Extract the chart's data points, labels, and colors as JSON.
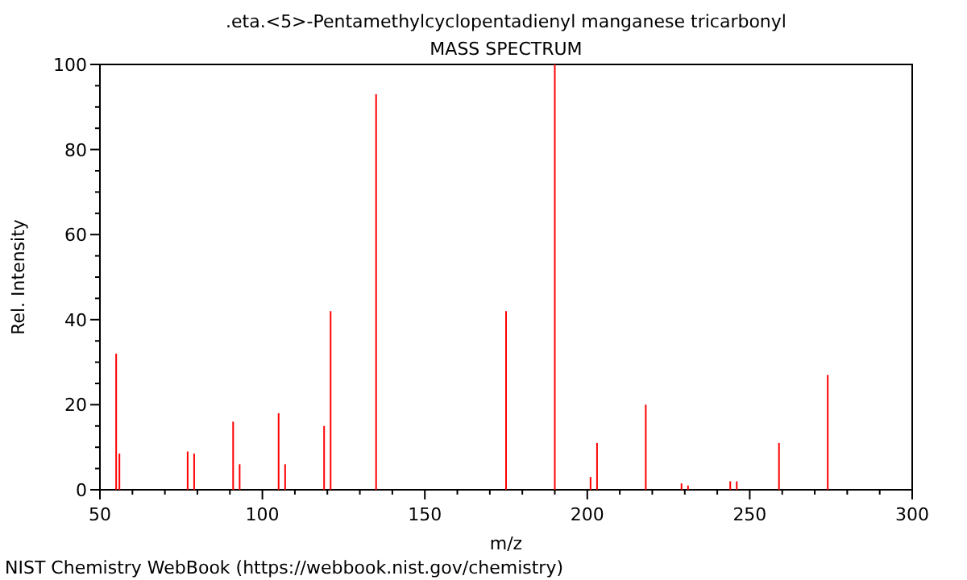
{
  "chart_data": {
    "type": "bar",
    "title": ".eta.<5>-Pentamethylcyclopentadienyl manganese tricarbonyl",
    "subtitle": "MASS SPECTRUM",
    "xlabel": "m/z",
    "ylabel": "Rel. Intensity",
    "x": [
      55,
      56,
      77,
      79,
      91,
      93,
      105,
      107,
      119,
      121,
      135,
      175,
      190,
      201,
      203,
      218,
      229,
      231,
      244,
      246,
      259,
      274
    ],
    "series": [
      {
        "color": "#ff0000",
        "values": [
          32,
          8.5,
          9,
          8.5,
          16,
          6,
          18,
          6,
          15,
          42,
          93,
          42,
          100,
          3,
          11,
          20,
          1.5,
          1,
          2,
          2,
          11,
          27
        ]
      }
    ],
    "xlim": [
      50,
      300
    ],
    "xticks": [
      50,
      {
        "value": 60,
        "label": null
      },
      {
        "value": 70,
        "label": null
      },
      {
        "value": 80,
        "label": null
      },
      {
        "value": 90,
        "label": null
      },
      100,
      {
        "value": 110,
        "label": null
      },
      {
        "value": 120,
        "label": null
      },
      {
        "value": 130,
        "label": null
      },
      {
        "value": 140,
        "label": null
      },
      150,
      {
        "value": 160,
        "label": null
      },
      {
        "value": 170,
        "label": null
      },
      {
        "value": 180,
        "label": null
      },
      {
        "value": 190,
        "label": null
      },
      200,
      {
        "value": 210,
        "label": null
      },
      {
        "value": 220,
        "label": null
      },
      {
        "value": 230,
        "label": null
      },
      {
        "value": 240,
        "label": null
      },
      250,
      {
        "value": 260,
        "label": null
      },
      {
        "value": 270,
        "label": null
      },
      {
        "value": 280,
        "label": null
      },
      {
        "value": 290,
        "label": null
      },
      300
    ],
    "ylim": [
      0,
      100
    ],
    "yticks": [
      0,
      {
        "value": 5,
        "label": null
      },
      {
        "value": 10,
        "label": null
      },
      {
        "value": 15,
        "label": null
      },
      20,
      {
        "value": 25,
        "label": null
      },
      {
        "value": 30,
        "label": null
      },
      {
        "value": 35,
        "label": null
      },
      40,
      {
        "value": 45,
        "label": null
      },
      {
        "value": 50,
        "label": null
      },
      {
        "value": 55,
        "label": null
      },
      60,
      {
        "value": 65,
        "label": null
      },
      {
        "value": 70,
        "label": null
      },
      {
        "value": 75,
        "label": null
      },
      80,
      {
        "value": 85,
        "label": null
      },
      {
        "value": 90,
        "label": null
      },
      {
        "value": 95,
        "label": null
      },
      100
    ],
    "grid": false,
    "annotations": [
      "NIST Chemistry WebBook (https://webbook.nist.gov/chemistry)"
    ]
  }
}
